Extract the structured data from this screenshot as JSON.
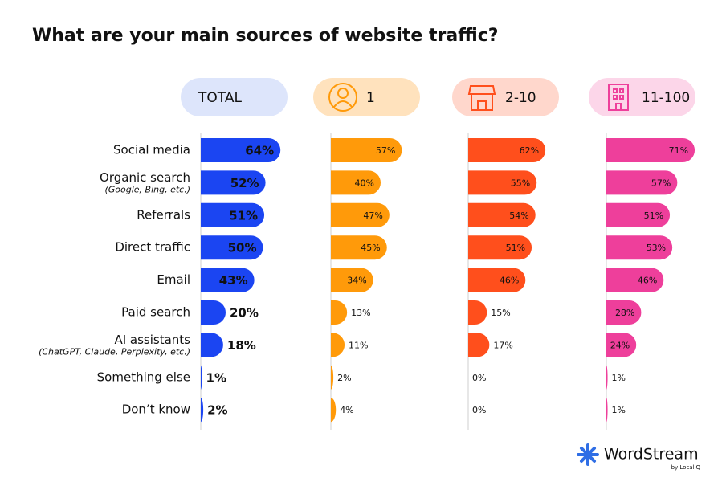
{
  "chart_data": {
    "type": "hbar-panels",
    "title": "What are your main sources of website traffic?",
    "categories": [
      "Social media",
      "Organic search",
      "Referrals",
      "Direct traffic",
      "Email",
      "Paid search",
      "AI assistants",
      "Something else",
      "Don’t know"
    ],
    "category_notes": [
      null,
      "(Google, Bing, etc.)",
      null,
      null,
      null,
      null,
      "(ChatGPT, Claude, Perplexity, etc.)",
      null,
      null
    ],
    "xlim": [
      0,
      100
    ],
    "series": [
      {
        "name": "TOTAL",
        "color": "#1b45f2",
        "header_color": "#dde5fb",
        "values": [
          64,
          52,
          51,
          50,
          43,
          20,
          18,
          1,
          2
        ],
        "value_labels": [
          "64%",
          "52%",
          "51%",
          "50%",
          "43%",
          "20%",
          "18%",
          "1%",
          "2%"
        ]
      },
      {
        "name": "1",
        "color": "#ff9a0a",
        "header_color": "#ffe2bd",
        "values": [
          57,
          40,
          47,
          45,
          34,
          13,
          11,
          2,
          4
        ],
        "value_labels": [
          "57%",
          "40%",
          "47%",
          "45%",
          "34%",
          "13%",
          "11%",
          "2%",
          "4%"
        ]
      },
      {
        "name": "2-10",
        "color": "#ff4f1c",
        "header_color": "#ffd7cc",
        "values": [
          62,
          55,
          54,
          51,
          46,
          15,
          17,
          0,
          0
        ],
        "value_labels": [
          "62%",
          "55%",
          "54%",
          "51%",
          "46%",
          "15%",
          "17%",
          "0%",
          "0%"
        ]
      },
      {
        "name": "11-100",
        "color": "#ee3f9b",
        "header_color": "#fcd6e9",
        "values": [
          71,
          57,
          51,
          53,
          46,
          28,
          24,
          1,
          1
        ],
        "value_labels": [
          "71%",
          "57%",
          "51%",
          "53%",
          "46%",
          "28%",
          "24%",
          "1%",
          "1%"
        ]
      }
    ]
  },
  "footer": {
    "brand": "WordStream",
    "byline": "by LocaliQ"
  }
}
